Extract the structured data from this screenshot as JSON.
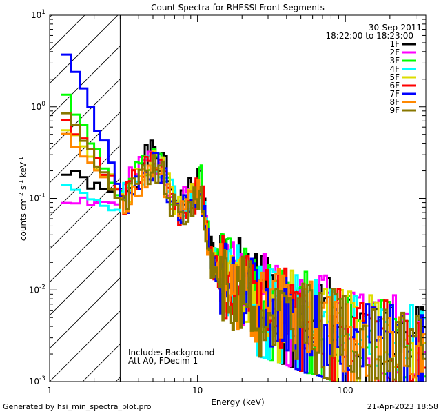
{
  "chart_data": {
    "type": "line",
    "step": true,
    "title": "Count Spectra for RHESSI Front Segments",
    "xlabel": "Energy (keV)",
    "ylabel_parts": [
      "counts cm",
      "-2",
      " s",
      "-1",
      " keV",
      "-1"
    ],
    "xscale": "log",
    "yscale": "log",
    "xlim": [
      1,
      350
    ],
    "ylim": [
      0.001,
      10
    ],
    "x_ticks": [
      {
        "value": 1,
        "label": "1"
      },
      {
        "value": 10,
        "label": "10"
      },
      {
        "value": 100,
        "label": "100"
      }
    ],
    "y_ticks": [
      {
        "value": 0.001,
        "base": "10",
        "exp": "-3"
      },
      {
        "value": 0.01,
        "base": "10",
        "exp": "-2"
      },
      {
        "value": 0.1,
        "base": "10",
        "exp": "-1"
      },
      {
        "value": 1,
        "base": "10",
        "exp": "0"
      },
      {
        "value": 10,
        "base": "10",
        "exp": "1"
      }
    ],
    "hatch_region": [
      1,
      3
    ],
    "date": "30-Sep-2011",
    "time_range": "18:22:00 to 18:23:00",
    "annotation_lines": [
      "Includes Background",
      "Att A0, FDecim 1"
    ],
    "series": [
      {
        "name": "1F",
        "color": "#000000",
        "start_value": 0.19,
        "offset": 0.11,
        "seed": 1
      },
      {
        "name": "2F",
        "color": "#ff00ff",
        "start_value": 0.1,
        "offset": 0.09,
        "seed": 2
      },
      {
        "name": "3F",
        "color": "#00ff00",
        "start_value": 1.2,
        "offset": 0.07,
        "seed": 3
      },
      {
        "name": "4F",
        "color": "#00ffff",
        "start_value": 0.13,
        "offset": 0.05,
        "seed": 4
      },
      {
        "name": "5F",
        "color": "#dddd00",
        "start_value": 0.55,
        "offset": 0.03,
        "seed": 5
      },
      {
        "name": "6F",
        "color": "#ff0000",
        "start_value": 0.75,
        "offset": 0.01,
        "seed": 6
      },
      {
        "name": "7F",
        "color": "#0000ff",
        "start_value": 4.2,
        "offset": -0.01,
        "seed": 7
      },
      {
        "name": "8F",
        "color": "#ff8800",
        "start_value": 0.45,
        "offset": -0.03,
        "seed": 8
      },
      {
        "name": "9F",
        "color": "#887700",
        "start_value": 0.8,
        "offset": -0.05,
        "seed": 9
      }
    ],
    "common_shape": [
      [
        3.0,
        0.085
      ],
      [
        3.3,
        0.1
      ],
      [
        3.6,
        0.14
      ],
      [
        4.0,
        0.17
      ],
      [
        4.4,
        0.2
      ],
      [
        4.8,
        0.23
      ],
      [
        5.2,
        0.22
      ],
      [
        5.7,
        0.19
      ],
      [
        6.2,
        0.12
      ],
      [
        6.8,
        0.085
      ],
      [
        7.4,
        0.07
      ],
      [
        8.0,
        0.075
      ],
      [
        8.7,
        0.09
      ],
      [
        9.4,
        0.1
      ],
      [
        10.0,
        0.12
      ],
      [
        10.5,
        0.14
      ],
      [
        11.0,
        0.06
      ],
      [
        11.6,
        0.035
      ],
      [
        12.3,
        0.022
      ],
      [
        13.0,
        0.018
      ],
      [
        14.0,
        0.015
      ],
      [
        15.0,
        0.013
      ],
      [
        16.5,
        0.012
      ],
      [
        18.0,
        0.011
      ],
      [
        20.0,
        0.0095
      ],
      [
        23.0,
        0.0085
      ],
      [
        26.0,
        0.0075
      ],
      [
        30.0,
        0.007
      ],
      [
        35.0,
        0.0065
      ],
      [
        40.0,
        0.006
      ],
      [
        46.0,
        0.0055
      ],
      [
        53.0,
        0.005
      ],
      [
        62.0,
        0.0048
      ],
      [
        72.0,
        0.0044
      ],
      [
        85.0,
        0.004
      ],
      [
        100.0,
        0.0037
      ],
      [
        120.0,
        0.0034
      ],
      [
        145.0,
        0.003
      ],
      [
        175.0,
        0.0028
      ],
      [
        210.0,
        0.0026
      ],
      [
        250.0,
        0.0024
      ],
      [
        300.0,
        0.0022
      ],
      [
        350.0,
        0.002
      ]
    ],
    "legend_position": "top-right"
  },
  "footer": {
    "generated_by": "Generated by hsi_min_spectra_plot.pro",
    "timestamp": "21-Apr-2023 18:58"
  }
}
